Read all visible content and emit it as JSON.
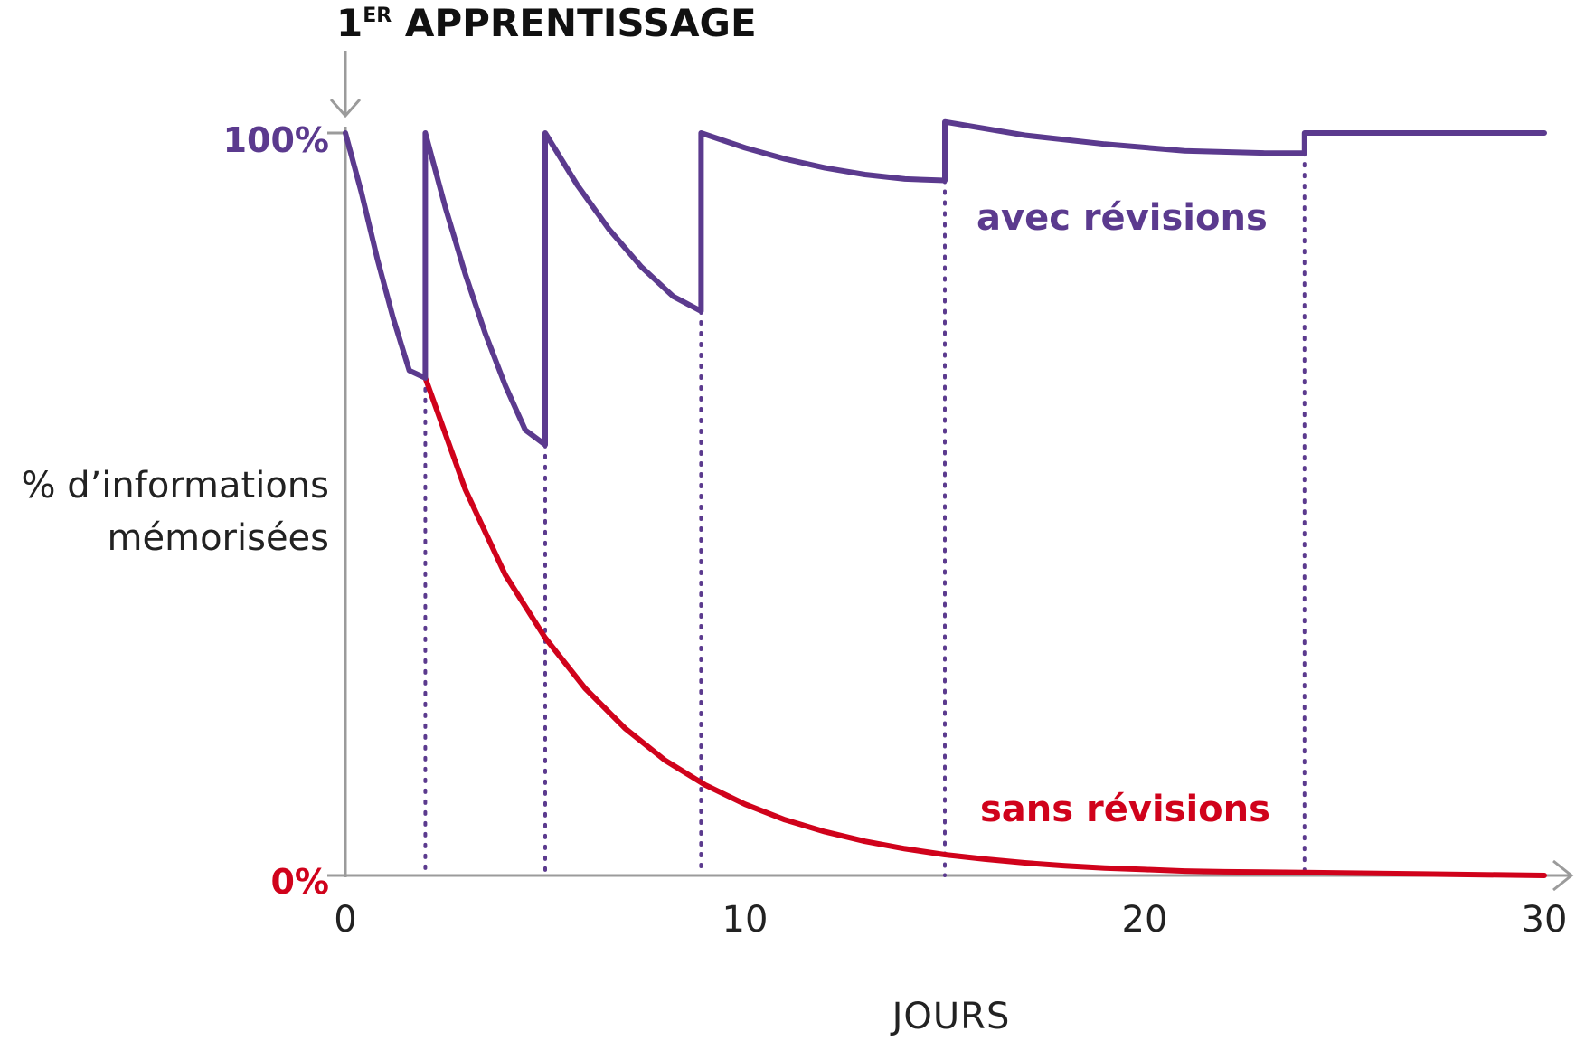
{
  "header": {
    "number": "1",
    "sup": "ER",
    "text": " APPRENTISSAGE"
  },
  "colors": {
    "with": "#5b3a8e",
    "without": "#d0021b",
    "axis": "#9b9b9b",
    "text": "#222222"
  },
  "chart_data": {
    "type": "line",
    "xlabel": "JOURS",
    "ylabel_lines": [
      "% d’informations",
      "mémorisées"
    ],
    "xlim": [
      0,
      30
    ],
    "ylim": [
      0,
      100
    ],
    "x_ticks": [
      "0",
      "10",
      "20",
      "30"
    ],
    "x_tick_values": [
      0,
      10,
      20,
      30
    ],
    "y_tick_labels": {
      "top": "100%",
      "bottom": "0%"
    },
    "review_days": [
      2,
      5,
      8.9,
      15,
      24
    ],
    "series": [
      {
        "name": "avec révisions",
        "color": "#5b3a8e",
        "points": [
          [
            0,
            100
          ],
          [
            0.4,
            92
          ],
          [
            0.8,
            83
          ],
          [
            1.2,
            75
          ],
          [
            1.6,
            68
          ],
          [
            2,
            67
          ],
          [
            2,
            100
          ],
          [
            2.5,
            90
          ],
          [
            3,
            81
          ],
          [
            3.5,
            73
          ],
          [
            4,
            66
          ],
          [
            4.5,
            60
          ],
          [
            5,
            58
          ],
          [
            5,
            100
          ],
          [
            5.8,
            93
          ],
          [
            6.6,
            87
          ],
          [
            7.4,
            82
          ],
          [
            8.2,
            78
          ],
          [
            8.9,
            76
          ],
          [
            8.9,
            100
          ],
          [
            10,
            98
          ],
          [
            11,
            96.5
          ],
          [
            12,
            95.3
          ],
          [
            13,
            94.4
          ],
          [
            14,
            93.8
          ],
          [
            15,
            93.6
          ],
          [
            15,
            101.5
          ],
          [
            17,
            99.7
          ],
          [
            19,
            98.5
          ],
          [
            21,
            97.6
          ],
          [
            23,
            97.3
          ],
          [
            24,
            97.3
          ],
          [
            24,
            100
          ],
          [
            30,
            100
          ]
        ]
      },
      {
        "name": "sans révisions",
        "color": "#d0021b",
        "points": [
          [
            2,
            67
          ],
          [
            3,
            52
          ],
          [
            4,
            40.5
          ],
          [
            5,
            32
          ],
          [
            6,
            25.2
          ],
          [
            7,
            19.8
          ],
          [
            8,
            15.5
          ],
          [
            9,
            12.2
          ],
          [
            10,
            9.6
          ],
          [
            11,
            7.5
          ],
          [
            12,
            5.9
          ],
          [
            13,
            4.6
          ],
          [
            14,
            3.6
          ],
          [
            15,
            2.8
          ],
          [
            16,
            2.2
          ],
          [
            17,
            1.7
          ],
          [
            18,
            1.3
          ],
          [
            19,
            1.0
          ],
          [
            20,
            0.8
          ],
          [
            21,
            0.6
          ],
          [
            22,
            0.5
          ],
          [
            24,
            0.4
          ],
          [
            27,
            0.2
          ],
          [
            30,
            0
          ]
        ]
      }
    ]
  }
}
